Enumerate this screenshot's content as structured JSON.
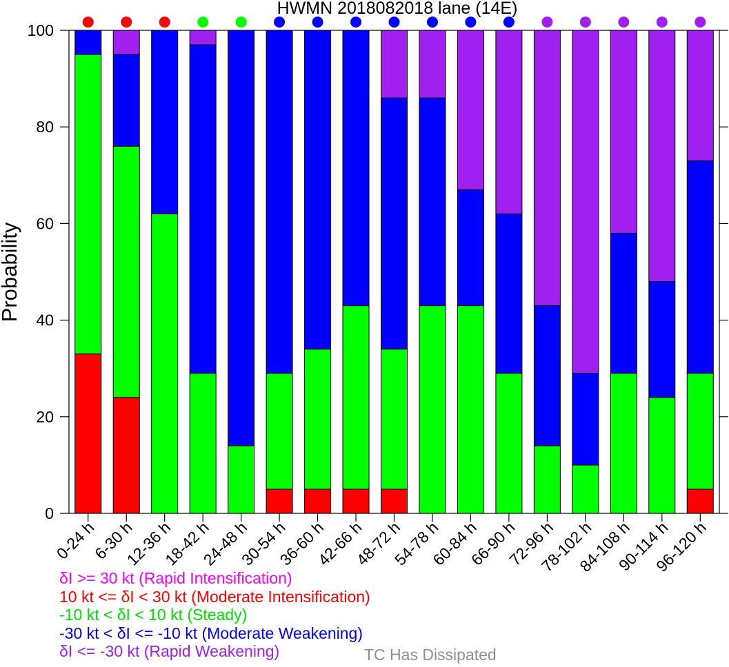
{
  "chart_data": {
    "type": "bar",
    "stacked": true,
    "title": "HWMN 2018082018 lane (14E)",
    "xlabel": "",
    "ylabel": "Probability",
    "ylim": [
      0,
      100
    ],
    "yticks": [
      0,
      20,
      40,
      60,
      80,
      100
    ],
    "grid": false,
    "categories": [
      "0-24 h",
      "6-30 h",
      "12-36 h",
      "18-42 h",
      "24-48 h",
      "30-54 h",
      "36-60 h",
      "42-66 h",
      "48-72 h",
      "54-78 h",
      "60-84 h",
      "66-90 h",
      "72-96 h",
      "78-102 h",
      "84-108 h",
      "90-114 h",
      "96-120 h"
    ],
    "series": [
      {
        "key": "ri",
        "color": "#ff00ff",
        "values": [
          0,
          0,
          0,
          0,
          0,
          0,
          0,
          0,
          0,
          0,
          0,
          0,
          0,
          0,
          0,
          0,
          0
        ]
      },
      {
        "key": "mi",
        "color": "#ff0000",
        "values": [
          33,
          24,
          0,
          0,
          0,
          5,
          5,
          5,
          5,
          0,
          0,
          0,
          0,
          0,
          0,
          0,
          5
        ]
      },
      {
        "key": "st",
        "color": "#00ff00",
        "values": [
          62,
          52,
          62,
          29,
          14,
          24,
          29,
          38,
          29,
          43,
          43,
          29,
          14,
          10,
          29,
          24,
          24
        ]
      },
      {
        "key": "mw",
        "color": "#0000ff",
        "values": [
          5,
          19,
          38,
          68,
          86,
          71,
          66,
          57,
          52,
          43,
          24,
          33,
          29,
          19,
          29,
          24,
          44
        ]
      },
      {
        "key": "rw",
        "color": "#a020f0",
        "values": [
          0,
          5,
          0,
          3,
          0,
          0,
          0,
          0,
          14,
          14,
          33,
          38,
          57,
          71,
          42,
          52,
          27
        ]
      }
    ],
    "dot_colors": [
      "#ff0000",
      "#ff0000",
      "#ff0000",
      "#00ff00",
      "#00ff00",
      "#0000ff",
      "#0000ff",
      "#0000ff",
      "#0000ff",
      "#0000ff",
      "#0000ff",
      "#0000ff",
      "#a020f0",
      "#a020f0",
      "#a020f0",
      "#a020f0",
      "#a020f0"
    ]
  },
  "legend": {
    "items": [
      {
        "text": "δI >= 30 kt (Rapid Intensification)",
        "color": "#ff00ff"
      },
      {
        "text": "10 kt <= δI < 30 kt (Moderate Intensification)",
        "color": "#ff0000"
      },
      {
        "text": "-10 kt < δI < 10 kt (Steady)",
        "color": "#00e000"
      },
      {
        "text": "-30 kt < δI <= -10 kt (Moderate Weakening)",
        "color": "#0000ff"
      },
      {
        "text": "δI <= -30 kt (Rapid Weakening)",
        "color": "#a020f0"
      }
    ],
    "dissipated": {
      "text": "TC Has Dissipated",
      "color": "#8f8f8f"
    }
  }
}
